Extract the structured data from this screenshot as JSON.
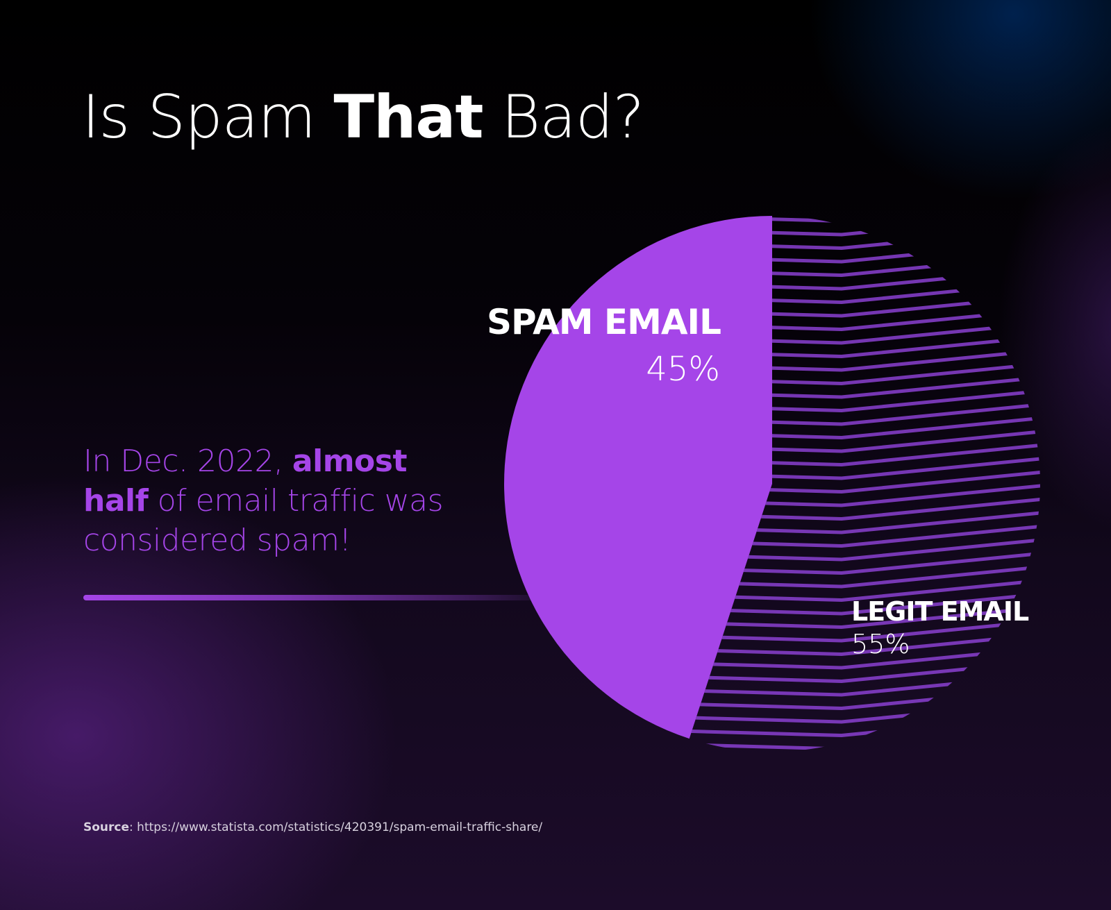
{
  "title": {
    "part1": "Is Spam ",
    "part2_bold": "That",
    "part3": " Bad?"
  },
  "callout": {
    "part1": "In Dec. 2022, ",
    "part2_bold": "almost half",
    "part3": " of email traffic was considered spam!"
  },
  "source": {
    "label": "Source",
    "separator": ": ",
    "url": "https://www.statista.com/statistics/420391/spam-email-traffic-share/"
  },
  "colors": {
    "spam": "#a545e8",
    "legit_stripes": "#8a3fd0",
    "background": "#000000"
  },
  "chart_data": {
    "type": "pie",
    "slices": [
      {
        "label": "SPAM EMAIL",
        "value": 45,
        "display": "45%",
        "color": "#a545e8",
        "fill": "solid"
      },
      {
        "label": "LEGIT EMAIL",
        "value": 55,
        "display": "55%",
        "color": "#8a3fd0",
        "fill": "striped"
      }
    ]
  }
}
